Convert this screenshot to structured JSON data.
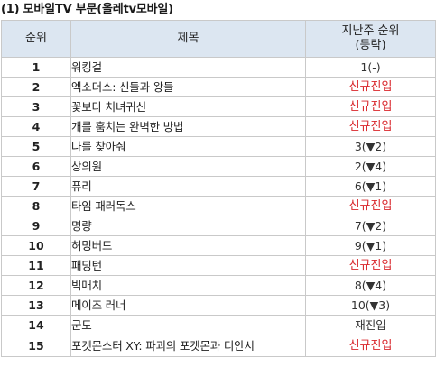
{
  "caption": "(1) 모바일TV 부문(올레tv모바일)",
  "headers": {
    "rank": "순위",
    "title": "제목",
    "prev_line1": "지난주 순위",
    "prev_line2": "(등락)"
  },
  "colors": {
    "header_bg": "#dce6f1",
    "new_entry": "#d9262b",
    "border": "#c9c9c9"
  },
  "rows": [
    {
      "rank": "1",
      "title": "워킹걸",
      "prev": "1(-)",
      "type": "plain"
    },
    {
      "rank": "2",
      "title": "엑소더스: 신들과 왕들",
      "prev": "신규진입",
      "type": "new"
    },
    {
      "rank": "3",
      "title": "꽃보다 처녀귀신",
      "prev": "신규진입",
      "type": "new"
    },
    {
      "rank": "4",
      "title": "개를 훔치는 완벽한 방법",
      "prev": "신규진입",
      "type": "new"
    },
    {
      "rank": "5",
      "title": "나를 찾아줘",
      "prev": "3(▼2)",
      "type": "plain"
    },
    {
      "rank": "6",
      "title": "상의원",
      "prev": "2(▼4)",
      "type": "plain"
    },
    {
      "rank": "7",
      "title": "퓨리",
      "prev": "6(▼1)",
      "type": "plain"
    },
    {
      "rank": "8",
      "title": "타임 패러독스",
      "prev": "신규진입",
      "type": "new"
    },
    {
      "rank": "9",
      "title": "명량",
      "prev": "7(▼2)",
      "type": "plain"
    },
    {
      "rank": "10",
      "title": "허밍버드",
      "prev": "9(▼1)",
      "type": "plain"
    },
    {
      "rank": "11",
      "title": "패딩턴",
      "prev": "신규진입",
      "type": "new"
    },
    {
      "rank": "12",
      "title": "빅매치",
      "prev": "8(▼4)",
      "type": "plain"
    },
    {
      "rank": "13",
      "title": "메이즈 러너",
      "prev": "10(▼3)",
      "type": "plain"
    },
    {
      "rank": "14",
      "title": "군도",
      "prev": "재진입",
      "type": "plain"
    },
    {
      "rank": "15",
      "title": "포켓몬스터 XY: 파괴의 포켓몬과 디안시",
      "prev": "신규진입",
      "type": "new"
    }
  ]
}
